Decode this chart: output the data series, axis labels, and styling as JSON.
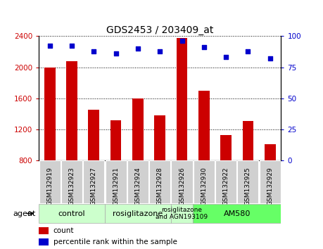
{
  "title": "GDS2453 / 203409_at",
  "samples": [
    "GSM132919",
    "GSM132923",
    "GSM132927",
    "GSM132921",
    "GSM132924",
    "GSM132928",
    "GSM132926",
    "GSM132930",
    "GSM132922",
    "GSM132925",
    "GSM132929"
  ],
  "counts": [
    2000,
    2080,
    1450,
    1320,
    1600,
    1380,
    2380,
    1700,
    1130,
    1310,
    1010
  ],
  "percentiles": [
    92,
    92,
    88,
    86,
    90,
    88,
    96,
    91,
    83,
    88,
    82
  ],
  "ylim_left": [
    800,
    2400
  ],
  "ylim_right": [
    0,
    100
  ],
  "yticks_left": [
    800,
    1200,
    1600,
    2000,
    2400
  ],
  "yticks_right": [
    0,
    25,
    50,
    75,
    100
  ],
  "bar_color": "#cc0000",
  "dot_color": "#0000cc",
  "title_color": "#000000",
  "left_tick_color": "#cc0000",
  "right_tick_color": "#0000cc",
  "sample_bg_color": "#d0d0d0",
  "agent_groups": [
    {
      "label": "control",
      "start": 0,
      "end": 3,
      "color": "#ccffcc"
    },
    {
      "label": "rosiglitazone",
      "start": 3,
      "end": 6,
      "color": "#ccffcc"
    },
    {
      "label": "rosiglitazone\nand AGN193109",
      "start": 6,
      "end": 7,
      "color": "#ccffcc"
    },
    {
      "label": "AM580",
      "start": 7,
      "end": 11,
      "color": "#66ff66"
    }
  ],
  "legend_bar_label": "count",
  "legend_dot_label": "percentile rank within the sample",
  "fig_width": 4.59,
  "fig_height": 3.54,
  "dpi": 100
}
